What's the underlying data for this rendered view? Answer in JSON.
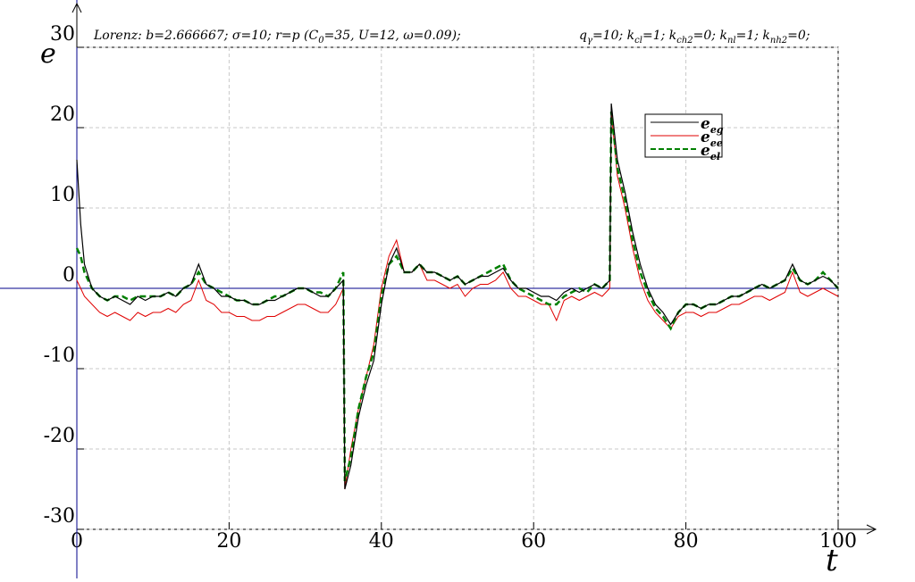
{
  "chart_data": {
    "type": "line",
    "title_parts": [
      {
        "text": "Lorenz: b=2.666667; σ=10; r=p (C"
      },
      {
        "text": "0",
        "sub": true
      },
      {
        "text": "=35, U=12, ω=0.09);"
      }
    ],
    "annotation_parts": [
      {
        "text": "q"
      },
      {
        "text": "γ",
        "sub": true
      },
      {
        "text": "=10; k"
      },
      {
        "text": "cl",
        "sub": true
      },
      {
        "text": "=1; k"
      },
      {
        "text": "ch2",
        "sub": true
      },
      {
        "text": "=0; k"
      },
      {
        "text": "nl",
        "sub": true
      },
      {
        "text": "=1; k"
      },
      {
        "text": "nh2",
        "sub": true
      },
      {
        "text": "=0;"
      }
    ],
    "x_label": "t",
    "y_label": "e",
    "xlim": [
      0,
      100
    ],
    "ylim": [
      -30,
      30
    ],
    "xticks": [
      0,
      20,
      40,
      60,
      80,
      100
    ],
    "yticks": [
      -30,
      -20,
      -10,
      0,
      10,
      20,
      30
    ],
    "grid": true,
    "x": [
      0,
      0.5,
      1,
      2,
      3,
      4,
      5,
      6,
      7,
      8,
      9,
      10,
      11,
      12,
      13,
      14,
      15,
      16,
      17,
      18,
      19,
      20,
      21,
      22,
      23,
      24,
      25,
      26,
      27,
      28,
      29,
      30,
      31,
      32,
      33,
      34,
      35,
      35.2,
      36,
      37,
      38,
      39,
      40,
      41,
      42,
      43,
      44,
      45,
      46,
      47,
      48,
      49,
      50,
      51,
      52,
      53,
      54,
      55,
      56,
      57,
      58,
      59,
      60,
      61,
      62,
      63,
      64,
      65,
      66,
      67,
      68,
      69,
      70,
      70.2,
      71,
      72,
      73,
      74,
      75,
      76,
      77,
      78,
      79,
      80,
      81,
      82,
      83,
      84,
      85,
      86,
      87,
      88,
      89,
      90,
      91,
      92,
      93,
      94,
      95,
      96,
      97,
      98,
      99,
      100
    ],
    "series": [
      {
        "name": "e",
        "sub": "eg",
        "color": "#000000",
        "dash": false,
        "width": 1.2,
        "values": [
          16,
          8,
          3,
          0,
          -1,
          -1.5,
          -1,
          -1.5,
          -2,
          -1,
          -1.5,
          -1,
          -1,
          -0.5,
          -1,
          0,
          0.5,
          3,
          0.5,
          0,
          -1,
          -1,
          -1.5,
          -1.5,
          -2,
          -2,
          -1.5,
          -1.5,
          -1,
          -0.5,
          0,
          0,
          -0.5,
          -1,
          -1,
          0,
          1,
          -25,
          -22,
          -16,
          -12,
          -9,
          -2,
          3,
          5,
          2,
          2,
          3,
          2,
          2,
          1.5,
          1,
          1.5,
          0.5,
          1,
          1.5,
          1.5,
          2,
          2.5,
          1,
          0,
          0,
          -0.5,
          -1,
          -1,
          -1.5,
          -0.5,
          0,
          -0.5,
          0,
          0.5,
          0,
          1,
          23,
          16,
          12,
          7,
          3,
          0,
          -2,
          -3,
          -4.5,
          -3,
          -2,
          -2,
          -2.5,
          -2,
          -2,
          -1.5,
          -1,
          -1,
          -0.5,
          0,
          0.5,
          0,
          0.5,
          1,
          3,
          1,
          0.5,
          1,
          1.5,
          1,
          0
        ]
      },
      {
        "name": "e",
        "sub": "ee",
        "color": "#e00000",
        "dash": false,
        "width": 1,
        "values": [
          1,
          0,
          -1,
          -2,
          -3,
          -3.5,
          -3,
          -3.5,
          -4,
          -3,
          -3.5,
          -3,
          -3,
          -2.5,
          -3,
          -2,
          -1.5,
          1,
          -1.5,
          -2,
          -3,
          -3,
          -3.5,
          -3.5,
          -4,
          -4,
          -3.5,
          -3.5,
          -3,
          -2.5,
          -2,
          -2,
          -2.5,
          -3,
          -3,
          -2,
          0,
          -25,
          -20,
          -15,
          -11,
          -7,
          0,
          4,
          6,
          2,
          2,
          3,
          1,
          1,
          0.5,
          0,
          0.5,
          -1,
          0,
          0.5,
          0.5,
          1,
          2,
          0,
          -1,
          -1,
          -1.5,
          -2,
          -2,
          -4,
          -1.5,
          -1,
          -1.5,
          -1,
          -0.5,
          -1,
          0,
          22,
          14,
          10,
          5,
          1,
          -1.5,
          -3,
          -4,
          -5,
          -3.5,
          -3,
          -3,
          -3.5,
          -3,
          -3,
          -2.5,
          -2,
          -2,
          -1.5,
          -1,
          -1,
          -1.5,
          -1,
          -0.5,
          2,
          -0.5,
          -1,
          -0.5,
          0,
          -0.5,
          -1
        ]
      },
      {
        "name": "e",
        "sub": "el",
        "color": "#008000",
        "dash": true,
        "width": 2.5,
        "values": [
          5,
          4,
          2,
          0,
          -1,
          -1.5,
          -1,
          -1,
          -1.5,
          -1,
          -1,
          -1,
          -1,
          -0.5,
          -1,
          0,
          0.5,
          2,
          0.5,
          0,
          -0.5,
          -1,
          -1.5,
          -1.5,
          -2,
          -2,
          -1.5,
          -1,
          -1,
          -0.5,
          0,
          0,
          -0.5,
          -0.5,
          -1,
          0,
          2,
          -24,
          -21,
          -15,
          -11,
          -8,
          -1,
          3,
          4,
          2,
          2,
          3,
          2,
          2,
          1.5,
          1,
          1.5,
          0.5,
          1,
          1.5,
          2,
          2.5,
          3,
          1,
          0,
          -0.5,
          -1,
          -1.5,
          -2,
          -2,
          -1,
          -0.5,
          0,
          -0.5,
          0.5,
          0,
          1,
          22,
          15,
          11,
          6,
          2,
          -0.5,
          -2.5,
          -3.5,
          -5,
          -3,
          -2,
          -2,
          -2.5,
          -2,
          -2,
          -1.5,
          -1,
          -1,
          -0.5,
          0,
          0.5,
          0,
          0.5,
          1,
          2.5,
          1,
          0.5,
          1,
          2,
          1,
          0
        ]
      }
    ]
  }
}
